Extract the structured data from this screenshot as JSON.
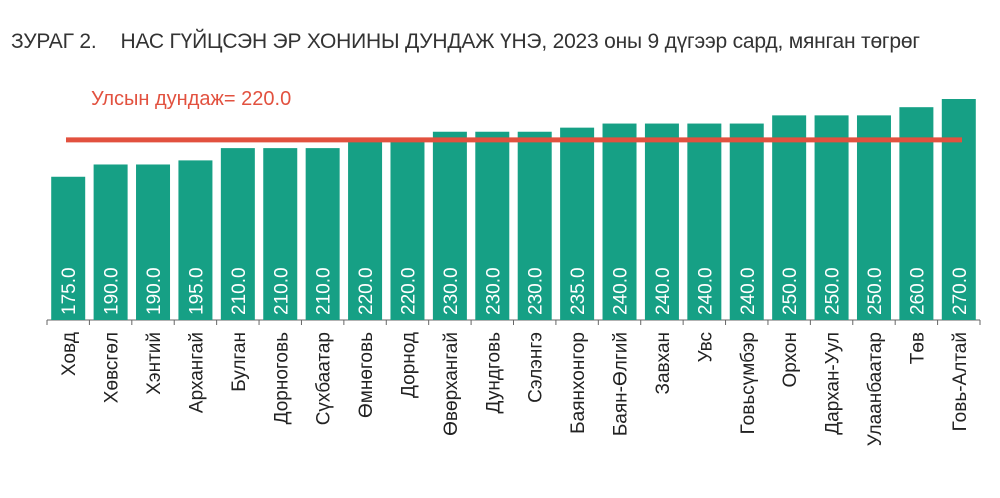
{
  "title": {
    "figure_number": "ЗУРАГ 2.",
    "text": "НАС ГҮЙЦСЭН ЭР ХОНИНЫ ДУНДАЖ ҮНЭ, 2023 оны 9 дүгээр сард, мянган төгрөг"
  },
  "colors": {
    "bar": "#16A085",
    "average_line": "#E2513F",
    "axis": "#666666"
  },
  "chart_data": {
    "type": "bar",
    "categories": [
      "Ховд",
      "Хөвсгөл",
      "Хэнтий",
      "Архангай",
      "Булган",
      "Дорноговь",
      "Сүхбаатар",
      "Өмнөговь",
      "Дорнод",
      "Өвөрхангай",
      "Дундговь",
      "Сэлэнгэ",
      "Баянхонгор",
      "Баян-Өлгий",
      "Завхан",
      "Увс",
      "Говьсүмбэр",
      "Орхон",
      "Дархан-Уул",
      "Улаанбаатар",
      "Төв",
      "Говь-Алтай"
    ],
    "values": [
      175.0,
      190.0,
      190.0,
      195.0,
      210.0,
      210.0,
      210.0,
      220.0,
      220.0,
      230.0,
      230.0,
      230.0,
      235.0,
      240.0,
      240.0,
      240.0,
      240.0,
      250.0,
      250.0,
      250.0,
      260.0,
      270.0
    ],
    "value_labels": [
      "175.0",
      "190.0",
      "190.0",
      "195.0",
      "210.0",
      "210.0",
      "210.0",
      "220.0",
      "220.0",
      "230.0",
      "230.0",
      "230.0",
      "235.0",
      "240.0",
      "240.0",
      "240.0",
      "240.0",
      "250.0",
      "250.0",
      "250.0",
      "260.0",
      "270.0"
    ],
    "average": {
      "value": 220.0,
      "label": "Улсын дундаж= 220.0"
    },
    "ylim": [
      0,
      270
    ],
    "xlabel": "",
    "ylabel": "",
    "legend": "none",
    "grid": false
  }
}
